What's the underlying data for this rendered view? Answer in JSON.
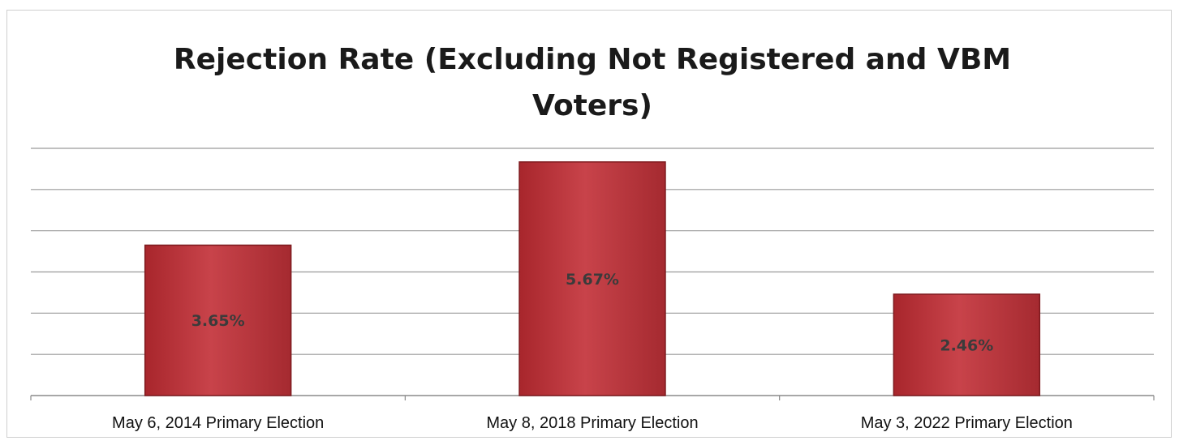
{
  "chart_data": {
    "type": "bar",
    "title": "Rejection Rate (Excluding Not Registered and VBM Voters)",
    "title_lines": [
      "Rejection Rate (Excluding Not Registered and VBM",
      "Voters)"
    ],
    "categories": [
      "May 6, 2014 Primary Election",
      "May 8, 2018 Primary Election",
      "May 3, 2022 Primary Election"
    ],
    "values": [
      3.65,
      5.67,
      2.46
    ],
    "data_labels": [
      "3.65%",
      "5.67%",
      "2.46%"
    ],
    "unit": "%",
    "ylim": [
      0,
      6
    ],
    "y_gridlines": [
      1,
      2,
      3,
      4,
      5,
      6
    ],
    "y_tick_labels_shown": false,
    "grid": true,
    "legend": "none",
    "xlabel": "",
    "ylabel": "",
    "colors": {
      "bar_fill": "#c0393f",
      "bar_edge": "#7d1a1e",
      "gridline": "#9a9a9a",
      "label": "#3b3b3b"
    }
  }
}
